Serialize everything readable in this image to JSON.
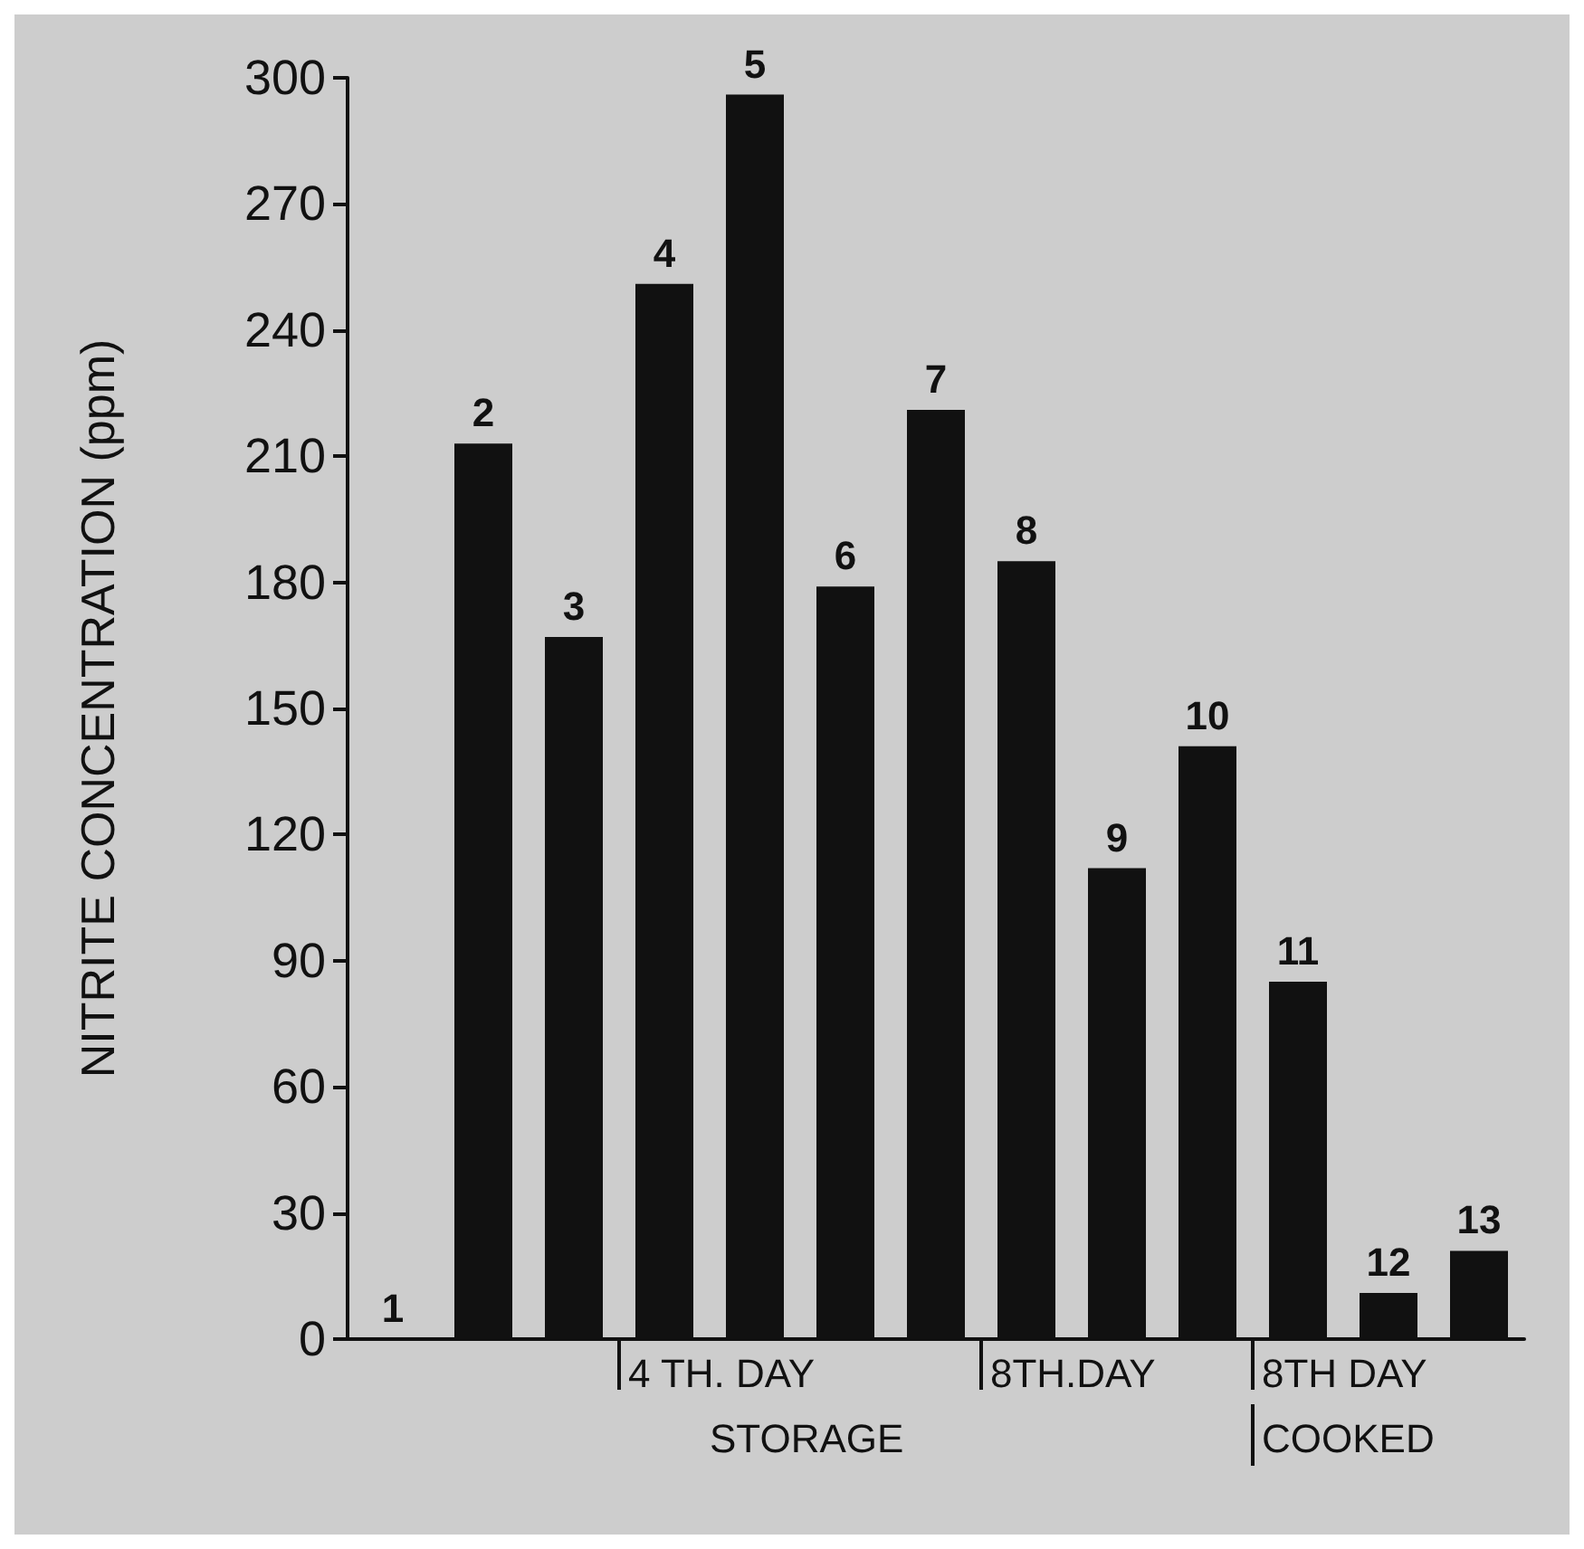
{
  "chart_data": {
    "type": "bar",
    "ylabel": "NITRITE CONCENTRATION (ppm)",
    "categories": [
      "1",
      "2",
      "3",
      "4",
      "5",
      "6",
      "7",
      "8",
      "9",
      "10",
      "11",
      "12",
      "13"
    ],
    "values": [
      0,
      213,
      167,
      251,
      296,
      179,
      221,
      185,
      112,
      141,
      85,
      11,
      21
    ],
    "color": "#111111",
    "ylim": [
      0,
      300
    ],
    "yticks": [
      0,
      30,
      60,
      90,
      120,
      150,
      180,
      210,
      240,
      270,
      300
    ],
    "grid": false,
    "tick_labels": "y",
    "annotations": [
      "4 TH. DAY",
      "8TH.DAY",
      "8TH DAY",
      "STORAGE",
      "COOKED"
    ]
  }
}
